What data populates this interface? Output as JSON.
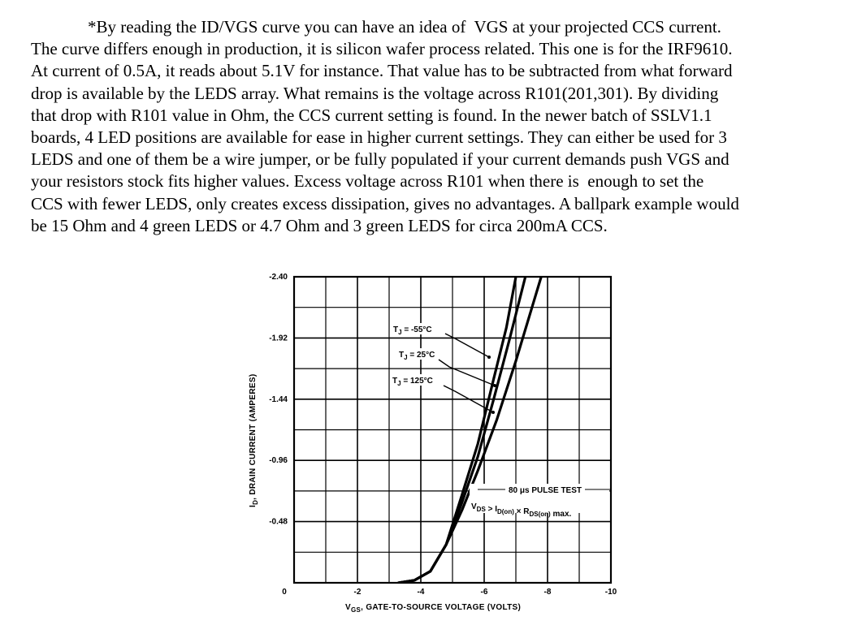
{
  "document": {
    "lines": [
      "*By reading the ID/VGS curve you can have an idea of  VGS at your projected CCS current.",
      "The curve differs enough in production, it is silicon wafer process related. This one is for the IRF9610.",
      "At current of 0.5A, it reads about 5.1V for instance. That value has to be subtracted from what forward",
      "drop is available by the LEDS array. What remains is the voltage across R101(201,301). By dividing",
      "that drop with R101 value in Ohm, the CCS current setting is found. In the newer batch of SSLV1.1",
      "boards, 4 LED positions are available for ease in higher current settings. They can either be used for 3",
      "LEDS and one of them be a wire jumper, or be fully populated if your current demands push VGS and",
      "your resistors stock fits higher values. Excess voltage across R101 when there is  enough to set the",
      "CCS with fewer LEDS, only creates excess dissipation, gives no advantages. A ballpark example would",
      "be 15 Ohm and 4 green LEDS or 4.7 Ohm and 3 green LEDS for circa 200mA CCS."
    ]
  },
  "chart_data": {
    "type": "line",
    "x_tick_labels": [
      "0",
      "-2",
      "-4",
      "-6",
      "-8",
      "-10"
    ],
    "x_ticks": [
      0,
      -2,
      -4,
      -6,
      -8,
      -10
    ],
    "y_tick_labels": [
      "-2.40",
      "-1.92",
      "-1.44",
      "-0.96",
      "-0.48"
    ],
    "y_ticks": [
      -2.4,
      -1.92,
      -1.44,
      -0.96,
      -0.48
    ],
    "xlim": [
      0,
      -10
    ],
    "ylim": [
      0,
      -2.4
    ],
    "xlabel_main": "V",
    "xlabel_sub": "GS",
    "xlabel_rest": ", GATE-TO-SOURCE VOLTAGE (VOLTS)",
    "ylabel_main": "I",
    "ylabel_sub": "D",
    "ylabel_rest": ", DRAIN CURRENT (AMPERES)",
    "grid": true,
    "series": [
      {
        "name": "TJ = -55°C",
        "x": [
          -3.3,
          -3.8,
          -4.3,
          -4.8,
          -5.3,
          -5.8,
          -6.3,
          -6.7,
          -7.0
        ],
        "y": [
          0,
          -0.02,
          -0.09,
          -0.3,
          -0.69,
          -1.09,
          -1.6,
          -2.0,
          -2.4
        ]
      },
      {
        "name": "TJ = 25°C",
        "x": [
          -3.3,
          -3.8,
          -4.3,
          -4.8,
          -5.3,
          -5.8,
          -6.3,
          -6.8,
          -7.3
        ],
        "y": [
          0,
          -0.02,
          -0.09,
          -0.3,
          -0.63,
          -0.99,
          -1.44,
          -1.91,
          -2.4
        ]
      },
      {
        "name": "TJ = 125°C",
        "x": [
          -3.3,
          -3.8,
          -4.3,
          -4.8,
          -5.3,
          -5.8,
          -6.4,
          -7.0,
          -7.8
        ],
        "y": [
          0,
          -0.02,
          -0.09,
          -0.3,
          -0.57,
          -0.88,
          -1.28,
          -1.74,
          -2.4
        ]
      }
    ],
    "series_labels": [
      {
        "main": "T",
        "sub": "J",
        "rest": " = -55°C"
      },
      {
        "main": "T",
        "sub": "J",
        "rest": " = 25°C"
      },
      {
        "main": "T",
        "sub": "J",
        "rest": " = 125°C"
      }
    ],
    "annotation": {
      "line1": "80 μs PULSE TEST",
      "line2_parts": [
        {
          "t": "V",
          "s": "DS"
        },
        {
          "t": " > I",
          "s": "D(on)"
        },
        {
          "t": " × R",
          "s": "DS(on)"
        },
        {
          "t": " max.",
          "s": ""
        }
      ]
    }
  }
}
